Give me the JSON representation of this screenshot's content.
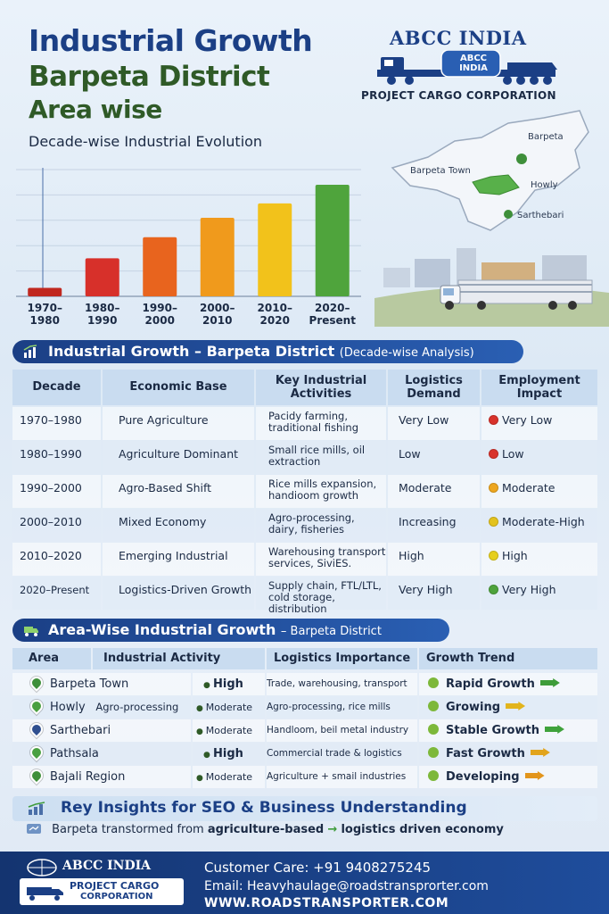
{
  "header": {
    "title_line1": "Industrial Growth",
    "title_line2": "Barpeta District",
    "title_line3": "Area wise",
    "subtitle": "Decade-wise Industrial Evolution"
  },
  "logo": {
    "name": "ABCC INDIA",
    "badge": "ABCC INDIA",
    "tagline": "PROJECT CARGO CORPORATION"
  },
  "map": {
    "labels": [
      "Barpeta",
      "Barpeta Town",
      "Howly",
      "Sarthebari"
    ]
  },
  "chart_data": {
    "type": "bar",
    "categories": [
      "1970–1980",
      "1980–1990",
      "1990–2000",
      "2000–2010",
      "2010–2020",
      "2020–Present"
    ],
    "category_lines": [
      [
        "1970–",
        "1980"
      ],
      [
        "1980–",
        "1990"
      ],
      [
        "1990–",
        "2000"
      ],
      [
        "2000–",
        "2010"
      ],
      [
        "2010–",
        "2020"
      ],
      [
        "2020–",
        "Present"
      ]
    ],
    "values": [
      1,
      4.5,
      7,
      9.3,
      11,
      13.2
    ],
    "colors": [
      "#c0281f",
      "#d7302a",
      "#e8641e",
      "#f09a1c",
      "#f2c21b",
      "#4fa43c"
    ],
    "ylim": [
      0,
      15
    ],
    "grid": true,
    "title": "",
    "xlabel": "",
    "ylabel": ""
  },
  "section1": {
    "title": "Industrial Growth – Barpeta District",
    "title_suffix": "(Decade-wise Analysis)",
    "headers": [
      "Decade",
      "Economic Base",
      "Key Industrial Activities",
      "Logistics Demand",
      "Employment Impact"
    ],
    "rows": [
      {
        "decade": "1970–1980",
        "base": "Pure Agriculture",
        "activities": "Pacidy farming, traditional fishing",
        "demand": "Very Low",
        "impact": "Very Low",
        "impact_color": "#d8322b"
      },
      {
        "decade": "1980–1990",
        "base": "Agriculture Dominant",
        "activities": "Small rice mills, oil extraction",
        "demand": "Low",
        "impact": "Low",
        "impact_color": "#d8322b"
      },
      {
        "decade": "1990–2000",
        "base": "Agro-Based Shift",
        "activities": "Rice mills expansion, handioom growth",
        "demand": "Moderate",
        "impact": "Moderate",
        "impact_color": "#eda61f"
      },
      {
        "decade": "2000–2010",
        "base": "Mixed Economy",
        "activities": "Agro-processing, dairy, fisheries",
        "demand": "Increasing",
        "impact": "Moderate-High",
        "impact_color": "#e3c21d"
      },
      {
        "decade": "2010–2020",
        "base": "Emerging Industrial",
        "activities": "Warehousing transport services, SiviES.",
        "demand": "High",
        "impact": "High",
        "impact_color": "#e6cf1e"
      },
      {
        "decade": "2020–Present",
        "base": "Logistics-Driven Growth",
        "activities": "Supply chain, FTL/LTL, cold storage, distribution",
        "demand": "Very High",
        "impact": "Very High",
        "impact_color": "#4ea33c"
      }
    ]
  },
  "section2": {
    "title": "Area-Wise Industrial Growth",
    "title_suffix": "– Barpeta District",
    "headers": [
      "Area",
      "Industrial Activity",
      "Logistics Importance",
      "Growth Trend"
    ],
    "rows": [
      {
        "area": "Barpeta Town",
        "activity": "",
        "level": "High",
        "logistics": "Trade, warehousing, transport",
        "trend": "Rapid Growth",
        "pin_color": "#3e8f3a",
        "arrow_color": "#3e9c3a"
      },
      {
        "area": "Howly",
        "activity": "Agro-processing",
        "level": "Moderate",
        "logistics": "Agro-processing, rice mills",
        "trend": "Growing",
        "pin_color": "#4aa040",
        "arrow_color": "#e2b41c"
      },
      {
        "area": "Sarthebari",
        "activity": "",
        "level": "Moderate",
        "logistics": "Handloom, beil metal industry",
        "trend": "Stable Growth",
        "pin_color": "#2f4f8f",
        "arrow_color": "#3fa23b"
      },
      {
        "area": "Pathsala",
        "activity": "",
        "level": "High",
        "logistics": "Commercial trade & logistics",
        "trend": "Fast Growth",
        "pin_color": "#4aa040",
        "arrow_color": "#e2a41c"
      },
      {
        "area": "Bajali Region",
        "activity": "",
        "level": "Moderate",
        "logistics": "Agriculture + smail industries",
        "trend": "Developing",
        "pin_color": "#3e8f3a",
        "arrow_color": "#e2951c"
      }
    ]
  },
  "insights": {
    "title": "Rey Insights for SEO & Business Understanding",
    "line_start": "Barpeta transtormed from",
    "line_bold1": "agriculture-based",
    "line_arrow": "→",
    "line_bold2": "logistics driven economy"
  },
  "footer": {
    "logo_name": "ABCC INDIA",
    "logo_sub1": "PROJECT CARGO",
    "logo_sub2": "CORPORATION",
    "care": "Customer Care: +91 9408275245",
    "email": "Email: Heavyhaulage@roadstransprorter.com",
    "web": "WWW.ROADSTRANSPORTER.COM"
  }
}
